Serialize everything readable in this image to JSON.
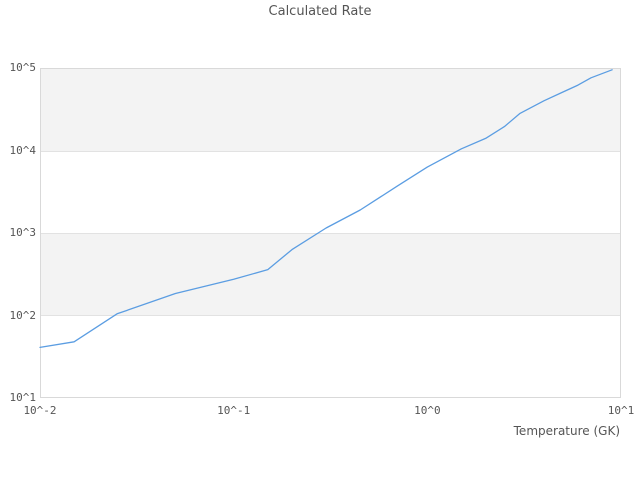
{
  "title": "Calculated Rate",
  "axes": {
    "x_label": "Temperature (GK)",
    "x_tick_labels": [
      "10^-2",
      "10^-1",
      "10^0",
      "10^1"
    ],
    "y_tick_labels": [
      "10^1",
      "10^2",
      "10^3",
      "10^4",
      "10^5"
    ]
  },
  "colors": {
    "line": "#5b9de2",
    "band_fill": "#f3f3f3",
    "gridline": "#e2e2e2",
    "plot_border": "#d9d9d9",
    "text": "#555555"
  },
  "chart_data": {
    "type": "line",
    "title": "Calculated Rate",
    "xlabel": "Temperature (GK)",
    "ylabel": "",
    "x_scale": "log",
    "y_scale": "log",
    "xlim": [
      0.01,
      10
    ],
    "ylim": [
      10,
      100000
    ],
    "x_tick_labels": [
      "10^-2",
      "10^-1",
      "10^0",
      "10^1"
    ],
    "y_tick_labels": [
      "10^1",
      "10^2",
      "10^3",
      "10^4",
      "10^5"
    ],
    "grid": "horizontal-decade-lines-with-alternating-bands",
    "legend": "none",
    "series": [
      {
        "name": "calculated-rate",
        "color": "#5b9de2",
        "x": [
          0.01,
          0.015,
          0.025,
          0.05,
          0.1,
          0.15,
          0.2,
          0.3,
          0.45,
          0.7,
          1.0,
          1.5,
          2.0,
          2.5,
          3.0,
          4.0,
          5.0,
          6.0,
          7.0,
          9.0
        ],
        "y": [
          41,
          48,
          105,
          185,
          275,
          360,
          630,
          1150,
          1900,
          3700,
          6300,
          10500,
          14000,
          19500,
          28000,
          40000,
          51000,
          62000,
          76000,
          95000
        ]
      }
    ]
  }
}
